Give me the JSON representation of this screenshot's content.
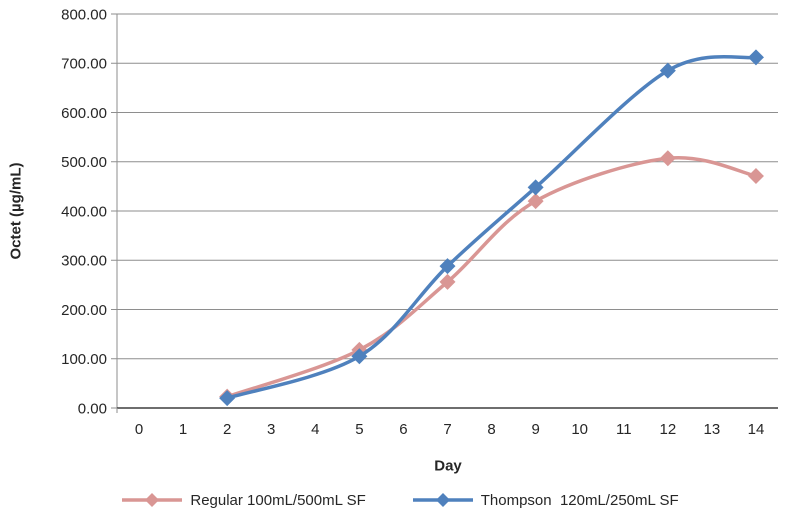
{
  "chart_data": {
    "type": "line",
    "title": "",
    "xlabel": "Day",
    "ylabel": "Octet (µg/mL)",
    "x": [
      2,
      5,
      7,
      9,
      12,
      14
    ],
    "series": [
      {
        "name": "Regular 100mL/500mL SF",
        "color": "#d99694",
        "marker": "diamond",
        "smooth": true,
        "values": [
          23,
          118,
          256,
          420,
          507,
          471
        ]
      },
      {
        "name": "Thompson  120mL/250mL SF",
        "color": "#4f81bd",
        "marker": "diamond",
        "smooth": true,
        "values": [
          20,
          105,
          288,
          448,
          685,
          712
        ]
      }
    ],
    "x_tick_labels": [
      "0",
      "1",
      "2",
      "3",
      "4",
      "5",
      "6",
      "7",
      "8",
      "9",
      "10",
      "11",
      "12",
      "13",
      "14"
    ],
    "y_tick_labels": [
      "0.00",
      "100.00",
      "200.00",
      "300.00",
      "400.00",
      "500.00",
      "600.00",
      "700.00",
      "800.00"
    ],
    "y_tick_values": [
      0,
      100,
      200,
      300,
      400,
      500,
      600,
      700,
      800
    ],
    "ylim": [
      0,
      800
    ],
    "grid": "horizontal",
    "legend_position": "bottom"
  },
  "style": {
    "background": "#ffffff",
    "gridline_color": "#8e8e8e",
    "y_axis_color": "#8e8e8e",
    "x_axis_color": "#3f3f3f",
    "text_color": "#262626"
  }
}
